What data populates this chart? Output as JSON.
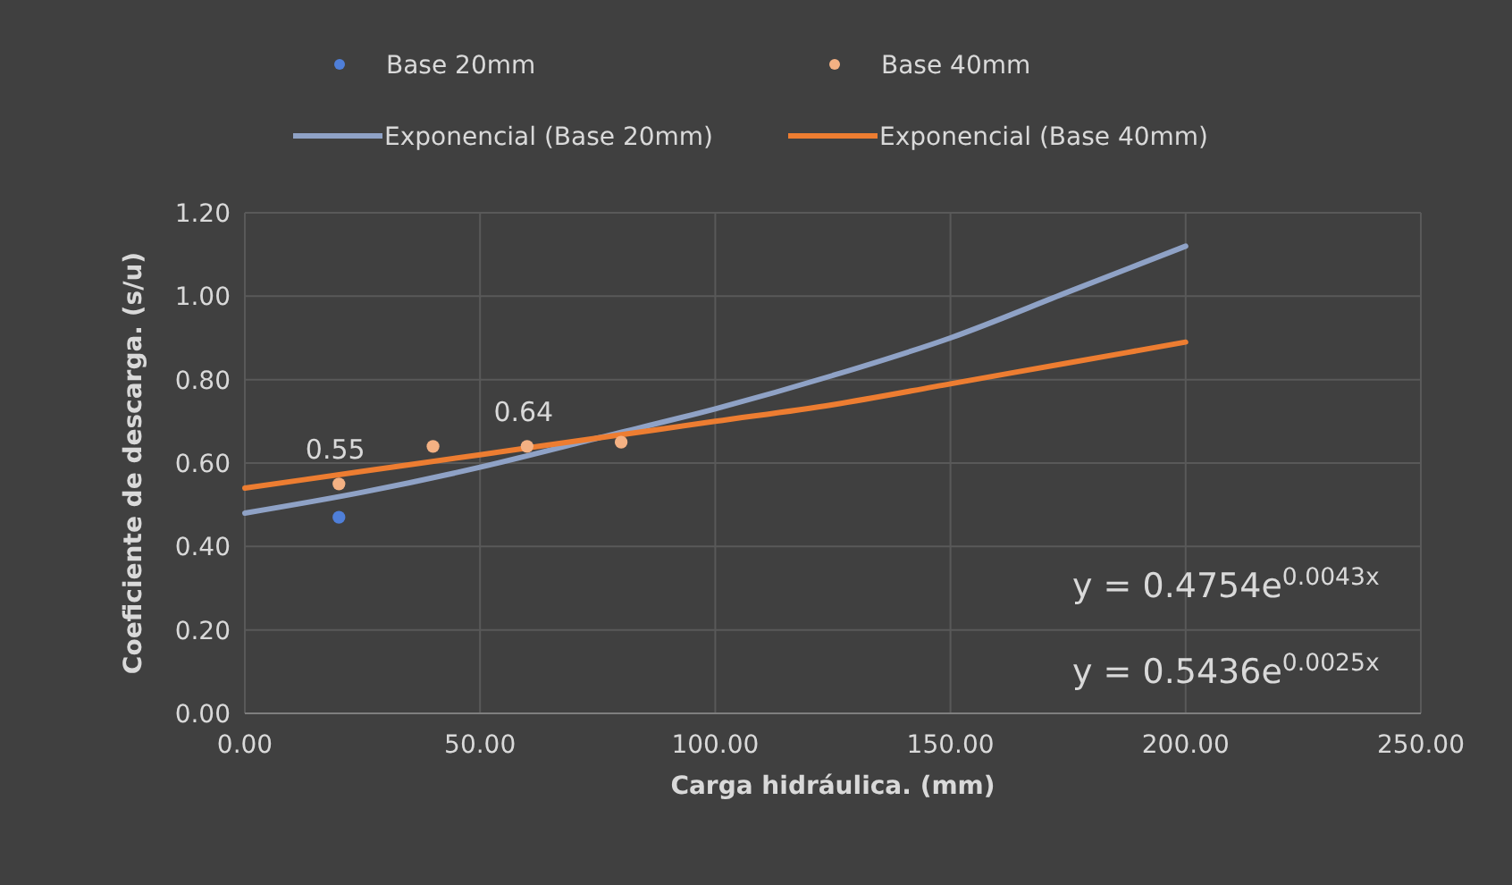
{
  "chart_data": {
    "type": "scatter",
    "xlabel": "Carga hidráulica. (mm)",
    "ylabel": "Coeficiente de descarga. (s/u)",
    "xlim": [
      0,
      250
    ],
    "xticks": [
      {
        "value": 0,
        "label": "0.00"
      },
      {
        "value": 50,
        "label": "50.00"
      },
      {
        "value": 100,
        "label": "100.00"
      },
      {
        "value": 150,
        "label": "150.00"
      },
      {
        "value": 200,
        "label": "200.00"
      },
      {
        "value": 250,
        "label": "250.00"
      }
    ],
    "ylim": [
      0,
      1.2
    ],
    "yticks": [
      {
        "value": 0,
        "label": "0.00"
      },
      {
        "value": 0.2,
        "label": "0.20"
      },
      {
        "value": 0.4,
        "label": "0.40"
      },
      {
        "value": 0.6,
        "label": "0.60"
      },
      {
        "value": 0.8,
        "label": "0.80"
      },
      {
        "value": 1,
        "label": "1.00"
      },
      {
        "value": 1.2,
        "label": "1.20"
      }
    ],
    "grid": true,
    "legend": "top",
    "series": [
      {
        "name": "Base 20mm",
        "marker": "circle",
        "color": "#4f7fd9",
        "x": [
          20
        ],
        "values": [
          0.47
        ]
      },
      {
        "name": "Base 40mm",
        "marker": "circle",
        "color": "#f4b183",
        "x": [
          20,
          40,
          60,
          80
        ],
        "values": [
          0.55,
          0.64,
          0.64,
          0.65
        ],
        "value_labels": [
          "0.55",
          null,
          "0.64",
          null
        ]
      },
      {
        "name": "Exponencial (Base 20mm)",
        "type": "line",
        "color": "#8fa2c6",
        "x": [
          0,
          25,
          50,
          75,
          100,
          125,
          150,
          175,
          200
        ],
        "values": [
          0.48,
          0.53,
          0.59,
          0.66,
          0.73,
          0.81,
          0.9,
          1.01,
          1.12
        ]
      },
      {
        "name": "Exponencial (Base 40mm)",
        "type": "line",
        "color": "#ed7d31",
        "x": [
          0,
          25,
          50,
          75,
          100,
          125,
          150,
          175,
          200
        ],
        "values": [
          0.54,
          0.58,
          0.62,
          0.66,
          0.7,
          0.74,
          0.79,
          0.84,
          0.89
        ]
      }
    ],
    "annotations": [
      "y = 0.4754e$^{0.0043x}$",
      "y = 0.5436e$^{0.0025x}$"
    ]
  }
}
